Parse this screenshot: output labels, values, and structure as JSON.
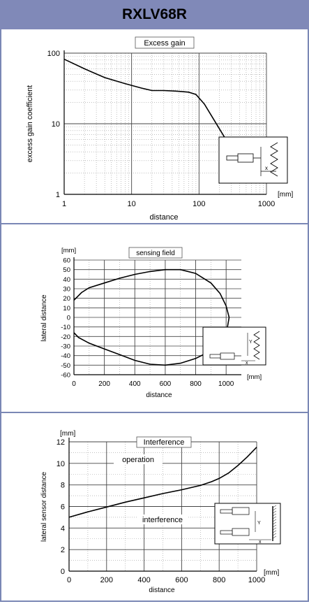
{
  "header": {
    "title": "RXLV68R"
  },
  "chart_data": [
    {
      "type": "line",
      "title": "Excess gain",
      "xlabel": "distance",
      "ylabel": "excess gain coefficient",
      "x_scale": "log",
      "y_scale": "log",
      "xlim": [
        1,
        1000
      ],
      "ylim": [
        1,
        100
      ],
      "x_ticks": [
        "1",
        "10",
        "100",
        "1000"
      ],
      "y_ticks": [
        "1",
        "10",
        "100"
      ],
      "x_unit": "[mm]",
      "grid": true,
      "series": [
        {
          "points": [
            [
              1,
              82
            ],
            [
              2,
              60
            ],
            [
              4,
              45
            ],
            [
              8,
              37
            ],
            [
              14,
              32
            ],
            [
              20,
              29.5
            ],
            [
              30,
              29.5
            ],
            [
              45,
              29
            ],
            [
              70,
              28
            ],
            [
              90,
              26
            ],
            [
              120,
              19
            ],
            [
              170,
              11
            ],
            [
              250,
              6
            ],
            [
              300,
              3
            ]
          ]
        }
      ],
      "inset": {
        "label": "x"
      }
    },
    {
      "type": "line",
      "title": "sensing field",
      "xlabel": "distance",
      "ylabel": "lateral distance",
      "xlim": [
        0,
        1100
      ],
      "ylim": [
        -60,
        60
      ],
      "x_ticks": [
        "0",
        "200",
        "400",
        "600",
        "800",
        "1000"
      ],
      "y_ticks": [
        "-60",
        "-50",
        "-40",
        "-30",
        "-20",
        "-10",
        "0",
        "10",
        "20",
        "30",
        "40",
        "50",
        "60"
      ],
      "y_unit": "[mm]",
      "x_unit": "[mm]",
      "grid": true,
      "series": [
        {
          "points": [
            [
              0,
              18
            ],
            [
              50,
              26
            ],
            [
              100,
              31
            ],
            [
              200,
              36
            ],
            [
              300,
              41
            ],
            [
              400,
              45
            ],
            [
              500,
              48
            ],
            [
              600,
              50
            ],
            [
              700,
              50
            ],
            [
              800,
              46
            ],
            [
              900,
              36
            ],
            [
              960,
              25
            ],
            [
              1000,
              12
            ],
            [
              1020,
              0
            ],
            [
              1000,
              -18
            ],
            [
              950,
              -28
            ],
            [
              900,
              -35
            ],
            [
              800,
              -43
            ],
            [
              700,
              -48
            ],
            [
              600,
              -50
            ],
            [
              500,
              -49
            ],
            [
              400,
              -45
            ],
            [
              300,
              -39
            ],
            [
              200,
              -33
            ],
            [
              100,
              -27
            ],
            [
              30,
              -21
            ],
            [
              0,
              -16
            ]
          ]
        }
      ],
      "inset": {
        "labels": [
          "x",
          "Y"
        ]
      }
    },
    {
      "type": "line",
      "title": "Interference",
      "xlabel": "distance",
      "ylabel": "lateral sensor distance",
      "xlim": [
        0,
        1000
      ],
      "ylim": [
        0,
        12
      ],
      "x_ticks": [
        "0",
        "200",
        "400",
        "600",
        "800",
        "1000"
      ],
      "y_ticks": [
        "0",
        "2",
        "4",
        "6",
        "8",
        "10",
        "12"
      ],
      "y_unit": "[mm]",
      "x_unit": "[mm]",
      "grid": true,
      "annotations": [
        "operation",
        "interference"
      ],
      "series": [
        {
          "points": [
            [
              0,
              5
            ],
            [
              100,
              5.5
            ],
            [
              200,
              5.95
            ],
            [
              300,
              6.4
            ],
            [
              400,
              6.8
            ],
            [
              500,
              7.2
            ],
            [
              600,
              7.55
            ],
            [
              700,
              7.95
            ],
            [
              760,
              8.3
            ],
            [
              800,
              8.6
            ],
            [
              850,
              9.1
            ],
            [
              900,
              9.8
            ],
            [
              950,
              10.6
            ],
            [
              1000,
              11.5
            ]
          ]
        }
      ],
      "inset": {
        "labels": [
          "x",
          "Y"
        ]
      }
    }
  ]
}
